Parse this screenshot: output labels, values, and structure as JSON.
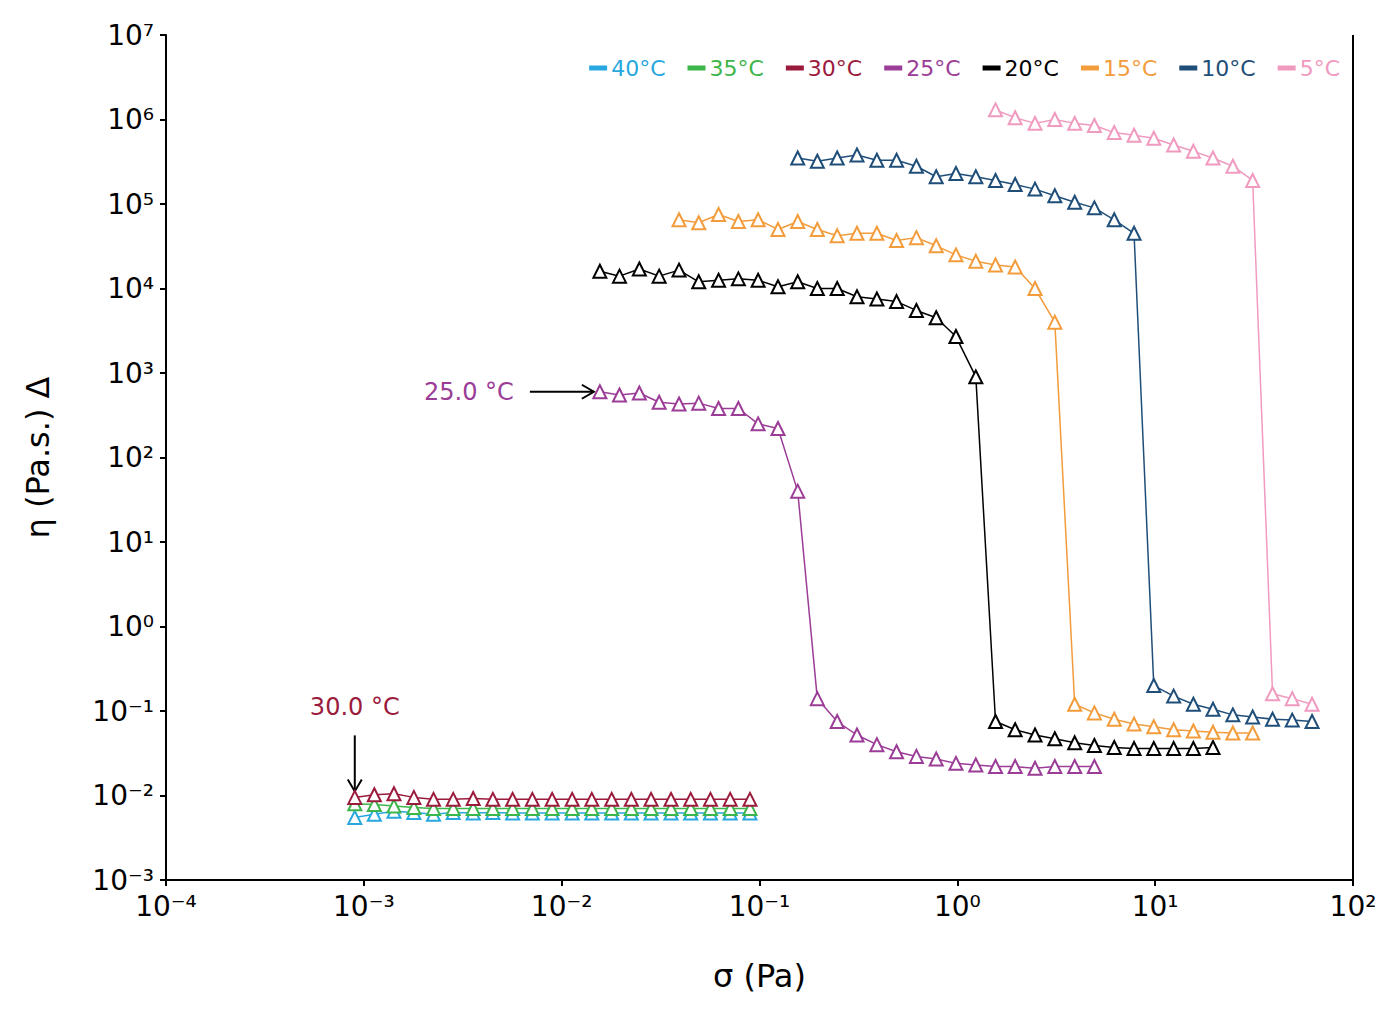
{
  "chart_data": {
    "type": "line",
    "x_label": "σ (Pa)",
    "y_label": "η (Pa.s.) Δ",
    "log": true,
    "grid": false,
    "legend": "top",
    "marker": "triangle",
    "xlim": [
      0.0001,
      100
    ],
    "ylim": [
      0.001,
      10000000
    ],
    "xticks": [
      {
        "value": 0.0001,
        "label": "10⁻⁴"
      },
      {
        "value": 0.001,
        "label": "10⁻³"
      },
      {
        "value": 0.01,
        "label": "10⁻²"
      },
      {
        "value": 0.1,
        "label": "10⁻¹"
      },
      {
        "value": 1,
        "label": "10⁰"
      },
      {
        "value": 10,
        "label": "10¹"
      },
      {
        "value": 100,
        "label": "10²"
      }
    ],
    "yticks": [
      {
        "value": 0.001,
        "label": "10⁻³"
      },
      {
        "value": 0.01,
        "label": "10⁻²"
      },
      {
        "value": 0.1,
        "label": "10⁻¹"
      },
      {
        "value": 1,
        "label": "10⁰"
      },
      {
        "value": 10,
        "label": "10¹"
      },
      {
        "value": 100,
        "label": "10²"
      },
      {
        "value": 1000,
        "label": "10³"
      },
      {
        "value": 10000,
        "label": "10⁴"
      },
      {
        "value": 100000,
        "label": "10⁵"
      },
      {
        "value": 1000000,
        "label": "10⁶"
      },
      {
        "value": 10000000,
        "label": "10⁷"
      }
    ],
    "annotations": [
      {
        "text": "25.0 °C",
        "x": 0.0156,
        "y": 600,
        "color": "#9b3c97"
      },
      {
        "text": "30.0 °C",
        "x": 0.0009,
        "y": 0.0095,
        "color": "#9b1b3d"
      }
    ],
    "series": [
      {
        "name": "40°C",
        "color": "#29a8e0",
        "x": [
          0.0009,
          0.00113,
          0.00142,
          0.00179,
          0.00225,
          0.00283,
          0.00357,
          0.00449,
          0.00565,
          0.00711,
          0.00895,
          0.0113,
          0.0142,
          0.0179,
          0.0225,
          0.0283,
          0.0357,
          0.0449,
          0.0565,
          0.0711,
          0.0895
        ],
        "values": [
          0.0055,
          0.006,
          0.0065,
          0.0063,
          0.006,
          0.0063,
          0.0062,
          0.0063,
          0.0062,
          0.0062,
          0.0062,
          0.0062,
          0.0062,
          0.0062,
          0.0062,
          0.0062,
          0.0062,
          0.0062,
          0.0062,
          0.0062,
          0.0062
        ]
      },
      {
        "name": "35°C",
        "color": "#3cb54a",
        "x": [
          0.0009,
          0.00113,
          0.00142,
          0.00179,
          0.00225,
          0.00283,
          0.00357,
          0.00449,
          0.00565,
          0.00711,
          0.00895,
          0.0113,
          0.0142,
          0.0179,
          0.0225,
          0.0283,
          0.0357,
          0.0449,
          0.0565,
          0.0711,
          0.0895
        ],
        "values": [
          0.008,
          0.0078,
          0.0075,
          0.0072,
          0.007,
          0.007,
          0.007,
          0.007,
          0.007,
          0.007,
          0.007,
          0.007,
          0.007,
          0.007,
          0.007,
          0.007,
          0.007,
          0.007,
          0.007,
          0.007,
          0.007
        ]
      },
      {
        "name": "30°C",
        "color": "#9b1b3d",
        "x": [
          0.0009,
          0.00113,
          0.00142,
          0.00179,
          0.00225,
          0.00283,
          0.00357,
          0.00449,
          0.00565,
          0.00711,
          0.00895,
          0.0113,
          0.0142,
          0.0179,
          0.0225,
          0.0283,
          0.0357,
          0.0449,
          0.0565,
          0.0711,
          0.0895
        ],
        "values": [
          0.0095,
          0.0102,
          0.0105,
          0.0095,
          0.009,
          0.009,
          0.0092,
          0.009,
          0.009,
          0.009,
          0.009,
          0.009,
          0.009,
          0.009,
          0.009,
          0.009,
          0.009,
          0.009,
          0.009,
          0.009,
          0.009
        ]
      },
      {
        "name": "25°C",
        "color": "#9b3c97",
        "x": [
          0.0156,
          0.0196,
          0.0247,
          0.0311,
          0.0392,
          0.0493,
          0.0621,
          0.0782,
          0.0984,
          0.124,
          0.156,
          0.196,
          0.247,
          0.311,
          0.392,
          0.493,
          0.621,
          0.782,
          0.984,
          1.24,
          1.56,
          1.96,
          2.47,
          3.11,
          3.92,
          4.93
        ],
        "values": [
          600,
          550,
          580,
          450,
          430,
          440,
          380,
          380,
          250,
          220,
          40,
          0.14,
          0.075,
          0.052,
          0.04,
          0.033,
          0.029,
          0.027,
          0.024,
          0.023,
          0.022,
          0.022,
          0.021,
          0.022,
          0.022,
          0.022
        ]
      },
      {
        "name": "20°C",
        "color": "#000000",
        "x": [
          0.0156,
          0.0196,
          0.0247,
          0.0311,
          0.0392,
          0.0493,
          0.0621,
          0.0782,
          0.0984,
          0.124,
          0.156,
          0.196,
          0.247,
          0.311,
          0.392,
          0.493,
          0.621,
          0.782,
          0.984,
          1.24,
          1.56,
          1.96,
          2.47,
          3.11,
          3.92,
          4.93,
          6.21,
          7.82,
          9.84,
          12.4,
          15.6,
          19.6
        ],
        "values": [
          16000,
          14000,
          17000,
          14000,
          16500,
          12000,
          12500,
          13000,
          12500,
          10500,
          12000,
          10000,
          10000,
          8000,
          7500,
          7000,
          5500,
          4500,
          2700,
          900,
          0.075,
          0.06,
          0.052,
          0.047,
          0.042,
          0.039,
          0.037,
          0.036,
          0.036,
          0.036,
          0.036,
          0.037
        ]
      },
      {
        "name": "15°C",
        "color": "#f39c3c",
        "x": [
          0.0392,
          0.0493,
          0.0621,
          0.0782,
          0.0984,
          0.124,
          0.156,
          0.196,
          0.247,
          0.311,
          0.392,
          0.493,
          0.621,
          0.782,
          0.984,
          1.24,
          1.56,
          1.96,
          2.47,
          3.11,
          3.92,
          4.93,
          6.21,
          7.82,
          9.84,
          12.4,
          15.6,
          19.6,
          24.7,
          31.1
        ],
        "values": [
          65000,
          60000,
          75000,
          62000,
          65000,
          50000,
          62000,
          50000,
          42000,
          45000,
          45000,
          37000,
          40000,
          32000,
          25000,
          21000,
          19000,
          18000,
          10000,
          4000,
          0.12,
          0.095,
          0.08,
          0.07,
          0.065,
          0.06,
          0.058,
          0.056,
          0.055,
          0.055
        ]
      },
      {
        "name": "10°C",
        "color": "#1f4e79",
        "x": [
          0.156,
          0.196,
          0.247,
          0.311,
          0.392,
          0.493,
          0.621,
          0.782,
          0.984,
          1.24,
          1.56,
          1.96,
          2.47,
          3.11,
          3.92,
          4.93,
          6.21,
          7.82,
          9.84,
          12.4,
          15.6,
          19.6,
          24.7,
          31.1,
          39.2,
          49.3,
          62.1
        ],
        "values": [
          350000,
          320000,
          350000,
          380000,
          330000,
          330000,
          280000,
          210000,
          230000,
          210000,
          190000,
          170000,
          150000,
          125000,
          105000,
          90000,
          65000,
          45000,
          0.2,
          0.15,
          0.12,
          0.105,
          0.09,
          0.085,
          0.08,
          0.078,
          0.075
        ]
      },
      {
        "name": "5°C",
        "color": "#f09ac0",
        "x": [
          1.56,
          1.96,
          2.47,
          3.11,
          3.92,
          4.93,
          6.21,
          7.82,
          9.84,
          12.4,
          15.6,
          19.6,
          24.7,
          31.1,
          39.2,
          49.3,
          62.1
        ],
        "values": [
          1300000,
          1050000,
          900000,
          1000000,
          900000,
          850000,
          700000,
          650000,
          600000,
          500000,
          420000,
          350000,
          280000,
          190000,
          0.16,
          0.14,
          0.12
        ]
      }
    ]
  }
}
